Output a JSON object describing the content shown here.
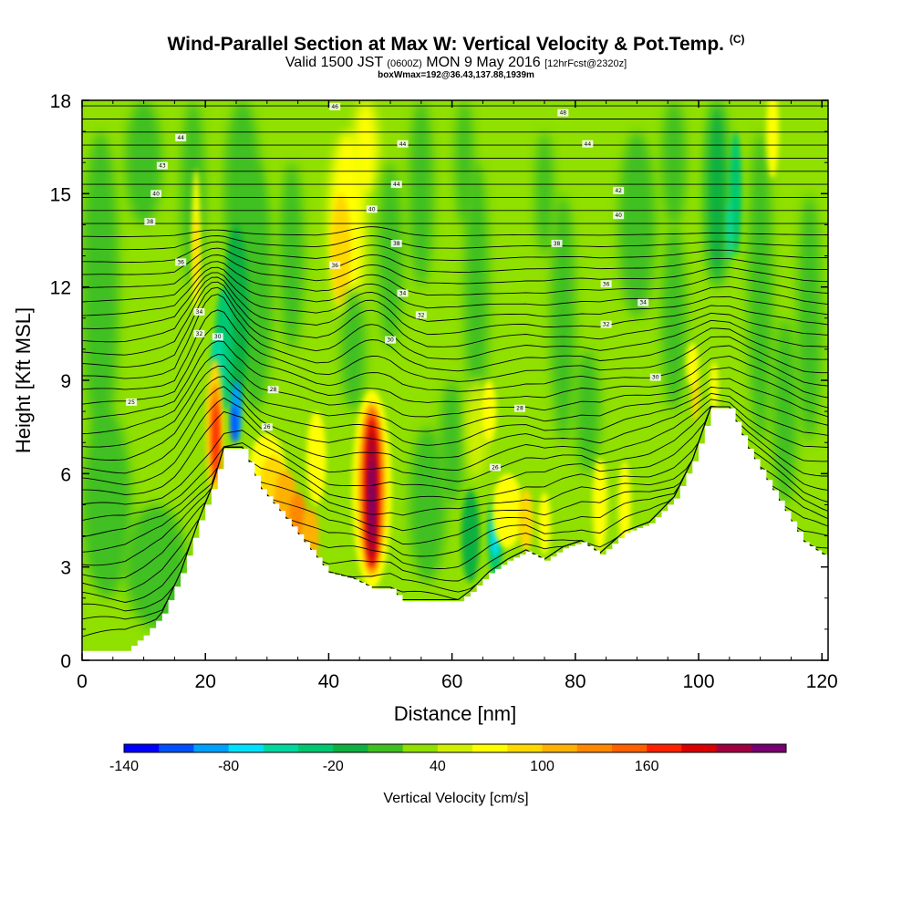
{
  "title_main": "Wind-Parallel Section at Max W: Vertical Velocity & Pot.Temp.",
  "title_copyright": "(C)",
  "valid_prefix": "Valid 1500 JST",
  "valid_zulu": "(0600Z)",
  "valid_date": "MON 9 May 2016",
  "valid_fcst": "[12hrFcst@2320z]",
  "subtitle3": "boxWmax=192@36.43,137.88,1939m",
  "chart_data": {
    "type": "heatmap",
    "xlabel": "Distance [nm]",
    "ylabel": "Height [Kft MSL]",
    "xlim": [
      0,
      121
    ],
    "ylim": [
      0,
      18
    ],
    "xticks": [
      "0",
      "20",
      "40",
      "60",
      "80",
      "100",
      "120"
    ],
    "yticks": [
      "0",
      "3",
      "6",
      "9",
      "12",
      "15",
      "18"
    ],
    "colorbar": {
      "label": "Vertical Velocity [cm/s]",
      "tick_labels": [
        "-140",
        "-80",
        "-20",
        "40",
        "100",
        "160"
      ],
      "colors": [
        "#0000ff",
        "#0050ff",
        "#00a0ff",
        "#00e0ff",
        "#00d8a0",
        "#00c870",
        "#10b040",
        "#40c020",
        "#90e000",
        "#d0f000",
        "#ffff00",
        "#ffd800",
        "#ffb000",
        "#ff8800",
        "#ff6000",
        "#ff2000",
        "#d80000",
        "#a00040",
        "#780070"
      ]
    },
    "terrain": [
      [
        0,
        0.3
      ],
      [
        7,
        0.3
      ],
      [
        10,
        0.8
      ],
      [
        13,
        1.5
      ],
      [
        16,
        2.8
      ],
      [
        19,
        4.5
      ],
      [
        21,
        5.5
      ],
      [
        23,
        6.8
      ],
      [
        26,
        6.8
      ],
      [
        29,
        5.5
      ],
      [
        32,
        4.8
      ],
      [
        36,
        3.8
      ],
      [
        40,
        2.8
      ],
      [
        44,
        2.6
      ],
      [
        47,
        2.3
      ],
      [
        50,
        2.3
      ],
      [
        52,
        1.9
      ],
      [
        61,
        1.9
      ],
      [
        63,
        2.2
      ],
      [
        66,
        2.8
      ],
      [
        69,
        3.2
      ],
      [
        72,
        3.5
      ],
      [
        75,
        3.2
      ],
      [
        78,
        3.6
      ],
      [
        81,
        3.8
      ],
      [
        84,
        3.4
      ],
      [
        88,
        4.1
      ],
      [
        92,
        4.4
      ],
      [
        96,
        5.2
      ],
      [
        99,
        6.4
      ],
      [
        102,
        8.1
      ],
      [
        105,
        8.1
      ],
      [
        108,
        6.8
      ],
      [
        111,
        5.8
      ],
      [
        114,
        4.8
      ],
      [
        117,
        3.8
      ],
      [
        120,
        3.4
      ],
      [
        121,
        3.3
      ]
    ],
    "contour_labels": [
      {
        "x": 41,
        "y": 17.8,
        "text": "46"
      },
      {
        "x": 16,
        "y": 16.8,
        "text": "44"
      },
      {
        "x": 13,
        "y": 15.9,
        "text": "43"
      },
      {
        "x": 12,
        "y": 15,
        "text": "40"
      },
      {
        "x": 11,
        "y": 14.1,
        "text": "38"
      },
      {
        "x": 16,
        "y": 12.8,
        "text": "36"
      },
      {
        "x": 19,
        "y": 11.2,
        "text": "34"
      },
      {
        "x": 19,
        "y": 10.5,
        "text": "32"
      },
      {
        "x": 22,
        "y": 10.4,
        "text": "30"
      },
      {
        "x": 31,
        "y": 8.7,
        "text": "28"
      },
      {
        "x": 30,
        "y": 7.5,
        "text": "26"
      },
      {
        "x": 8,
        "y": 8.3,
        "text": "25"
      },
      {
        "x": 52,
        "y": 16.6,
        "text": "44"
      },
      {
        "x": 51,
        "y": 15.3,
        "text": "44"
      },
      {
        "x": 47,
        "y": 14.5,
        "text": "40"
      },
      {
        "x": 51,
        "y": 13.4,
        "text": "38"
      },
      {
        "x": 41,
        "y": 12.7,
        "text": "36"
      },
      {
        "x": 52,
        "y": 11.8,
        "text": "34"
      },
      {
        "x": 55,
        "y": 11.1,
        "text": "32"
      },
      {
        "x": 50,
        "y": 10.3,
        "text": "30"
      },
      {
        "x": 71,
        "y": 8.1,
        "text": "28"
      },
      {
        "x": 67,
        "y": 6.2,
        "text": "26"
      },
      {
        "x": 78,
        "y": 17.6,
        "text": "48"
      },
      {
        "x": 82,
        "y": 16.6,
        "text": "44"
      },
      {
        "x": 87,
        "y": 15.1,
        "text": "42"
      },
      {
        "x": 87,
        "y": 14.3,
        "text": "40"
      },
      {
        "x": 77,
        "y": 13.4,
        "text": "38"
      },
      {
        "x": 85,
        "y": 12.1,
        "text": "36"
      },
      {
        "x": 91,
        "y": 11.5,
        "text": "34"
      },
      {
        "x": 85,
        "y": 10.8,
        "text": "32"
      },
      {
        "x": 93,
        "y": 9.1,
        "text": "30"
      }
    ]
  }
}
